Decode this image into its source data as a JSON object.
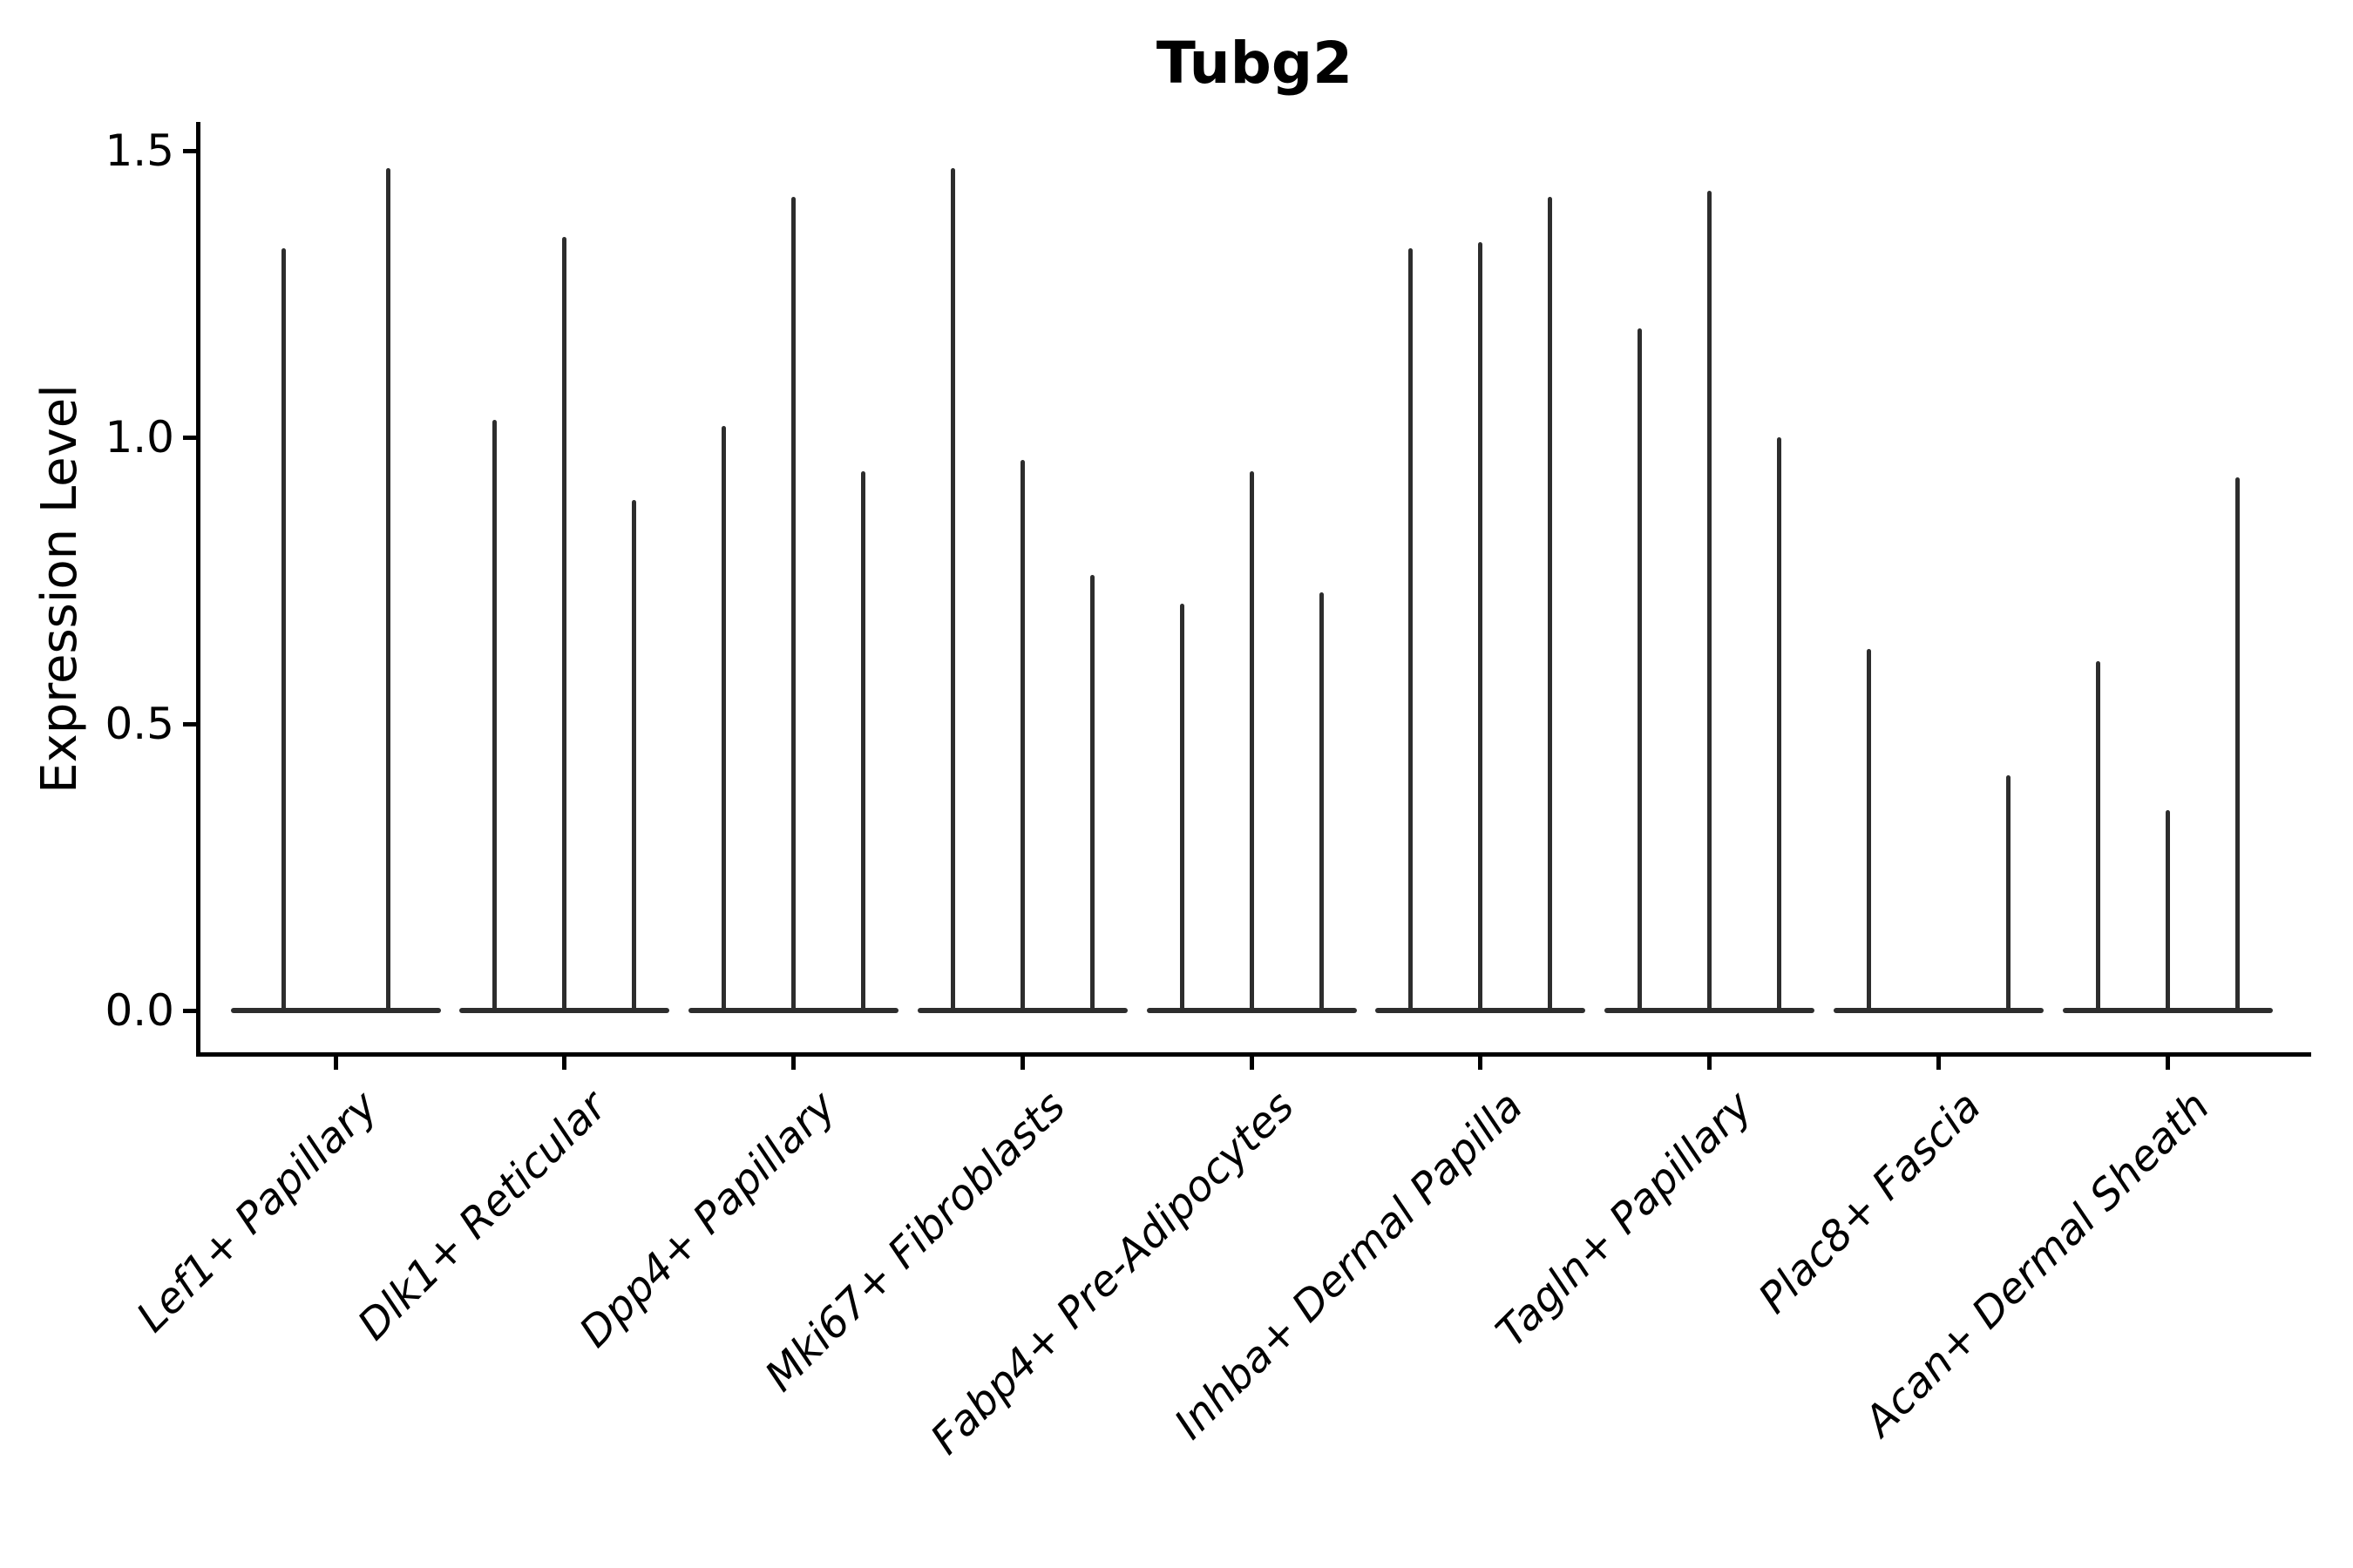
{
  "title": "Tubg2",
  "axes": {
    "ylabel": "Expression Level",
    "ytick_labels": [
      "0.0",
      "0.5",
      "1.0",
      "1.5"
    ]
  },
  "chart_data": {
    "type": "violin",
    "title": "Tubg2",
    "xlabel": "",
    "ylabel": "Expression Level",
    "ylim": [
      -0.08,
      1.55
    ],
    "yticks": [
      0.0,
      0.5,
      1.0,
      1.5
    ],
    "grid": false,
    "legend": null,
    "style": "needle-thin violins (sparse expression), dark charcoal strokes on white",
    "categories": [
      "Lef1+ Papillary",
      "Dlk1+ Reticular",
      "Dpp4+ Papillary",
      "Mki67+ Fibroblasts",
      "Fabp4+ Pre-Adipocytes",
      "Inhba+ Dermal Papilla",
      "Tagln+ Papillary",
      "Plac8+ Fascia",
      "Acan+ Dermal Sheath"
    ],
    "groups": [
      {
        "label": "Lef1+ Papillary",
        "violins": [
          {
            "slot_offset": -60,
            "peak": 1.33
          },
          {
            "slot_offset": 60,
            "peak": 1.47
          }
        ]
      },
      {
        "label": "Dlk1+ Reticular",
        "violins": [
          {
            "slot_offset": -80,
            "peak": 1.03
          },
          {
            "slot_offset": 0,
            "peak": 1.35
          },
          {
            "slot_offset": 80,
            "peak": 0.89
          }
        ]
      },
      {
        "label": "Dpp4+ Papillary",
        "violins": [
          {
            "slot_offset": -80,
            "peak": 1.02
          },
          {
            "slot_offset": 0,
            "peak": 1.42
          },
          {
            "slot_offset": 80,
            "peak": 0.94
          }
        ]
      },
      {
        "label": "Mki67+ Fibroblasts",
        "violins": [
          {
            "slot_offset": -80,
            "peak": 1.47
          },
          {
            "slot_offset": 0,
            "peak": 0.96
          },
          {
            "slot_offset": 80,
            "peak": 0.76
          }
        ]
      },
      {
        "label": "Fabp4+ Pre-Adipocytes",
        "violins": [
          {
            "slot_offset": -80,
            "peak": 0.71
          },
          {
            "slot_offset": 0,
            "peak": 0.94
          },
          {
            "slot_offset": 80,
            "peak": 0.73
          }
        ]
      },
      {
        "label": "Inhba+ Dermal Papilla",
        "violins": [
          {
            "slot_offset": -80,
            "peak": 1.33
          },
          {
            "slot_offset": 0,
            "peak": 1.34
          },
          {
            "slot_offset": 80,
            "peak": 1.42
          }
        ]
      },
      {
        "label": "Tagln+ Papillary",
        "violins": [
          {
            "slot_offset": -80,
            "peak": 1.19
          },
          {
            "slot_offset": 0,
            "peak": 1.43
          },
          {
            "slot_offset": 80,
            "peak": 1.0
          }
        ]
      },
      {
        "label": "Plac8+ Fascia",
        "violins": [
          {
            "slot_offset": -80,
            "peak": 0.63
          },
          {
            "slot_offset": 0,
            "peak": 0.0
          },
          {
            "slot_offset": 80,
            "peak": 0.41
          }
        ]
      },
      {
        "label": "Acan+ Dermal Sheath",
        "violins": [
          {
            "slot_offset": -80,
            "peak": 0.61
          },
          {
            "slot_offset": 0,
            "peak": 0.35
          },
          {
            "slot_offset": 80,
            "peak": 0.93
          }
        ]
      }
    ],
    "colors": {
      "violin_stroke": "#2d2d2d",
      "axis": "#000000",
      "text": "#000000",
      "background": "#ffffff"
    }
  }
}
